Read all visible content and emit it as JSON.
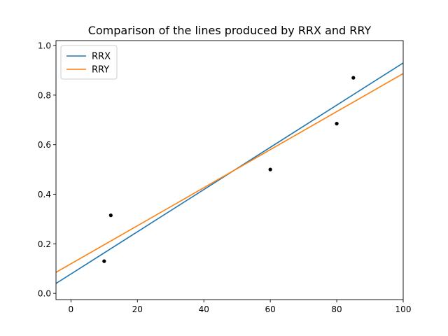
{
  "chart_data": {
    "type": "line",
    "title": "Comparison of the lines produced by RRX and RRY",
    "xlabel": "",
    "ylabel": "",
    "xlim": [
      -4.5,
      100
    ],
    "ylim": [
      -0.025,
      1.02
    ],
    "xticks": [
      0,
      20,
      40,
      60,
      80,
      100
    ],
    "yticks": [
      0.0,
      0.2,
      0.4,
      0.6,
      0.8,
      1.0
    ],
    "xtick_labels": [
      "0",
      "20",
      "40",
      "60",
      "80",
      "100"
    ],
    "ytick_labels": [
      "0.0",
      "0.2",
      "0.4",
      "0.6",
      "0.8",
      "1.0"
    ],
    "grid": false,
    "legend_position": "top-left",
    "scatter_points": [
      {
        "x": 10,
        "y": 0.13
      },
      {
        "x": 12,
        "y": 0.315
      },
      {
        "x": 60,
        "y": 0.5
      },
      {
        "x": 80,
        "y": 0.685
      },
      {
        "x": 85,
        "y": 0.87
      }
    ],
    "scatter_color": "#000000",
    "series": [
      {
        "name": "RRX",
        "color": "#1f77b4",
        "x": [
          -4.5,
          100
        ],
        "y": [
          0.04,
          0.93
        ]
      },
      {
        "name": "RRY",
        "color": "#ff7f0e",
        "x": [
          -4.5,
          100
        ],
        "y": [
          0.085,
          0.887
        ]
      }
    ]
  }
}
